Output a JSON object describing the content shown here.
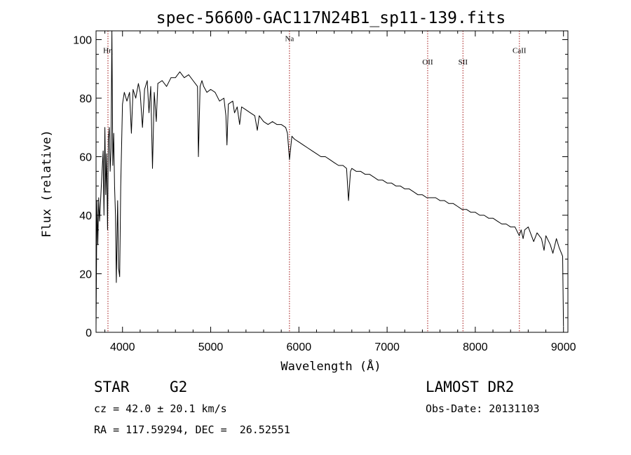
{
  "chart_data": {
    "type": "line",
    "title": "spec-56600-GAC117N24B1_sp11-139.fits",
    "xlabel": "Wavelength (Å)",
    "ylabel": "Flux (relative)",
    "xlim": [
      3700,
      9050
    ],
    "ylim": [
      0,
      103
    ],
    "xticks": [
      4000,
      5000,
      6000,
      7000,
      8000,
      9000
    ],
    "yticks": [
      0,
      20,
      40,
      60,
      80,
      100
    ],
    "grid": false,
    "color": "#000000",
    "line_marker_color": "#a01010",
    "spectral_lines": [
      {
        "name": "Hη",
        "wavelength": 3835,
        "label_y": 95
      },
      {
        "name": "Na",
        "wavelength": 5893,
        "label_y": 99
      },
      {
        "name": "OII",
        "wavelength": 7460,
        "label_y": 91
      },
      {
        "name": "SII",
        "wavelength": 7860,
        "label_y": 91
      },
      {
        "name": "CaII",
        "wavelength": 8500,
        "label_y": 95
      }
    ],
    "series": [
      {
        "points": [
          [
            3700,
            2
          ],
          [
            3710,
            45
          ],
          [
            3720,
            30
          ],
          [
            3730,
            46
          ],
          [
            3740,
            38
          ],
          [
            3760,
            50
          ],
          [
            3780,
            62
          ],
          [
            3790,
            40
          ],
          [
            3800,
            70
          ],
          [
            3810,
            47
          ],
          [
            3820,
            61
          ],
          [
            3830,
            35
          ],
          [
            3840,
            66
          ],
          [
            3850,
            70
          ],
          [
            3860,
            55
          ],
          [
            3870,
            63
          ],
          [
            3880,
            103
          ],
          [
            3890,
            57
          ],
          [
            3900,
            68
          ],
          [
            3910,
            50
          ],
          [
            3920,
            40
          ],
          [
            3930,
            17
          ],
          [
            3945,
            45
          ],
          [
            3955,
            22
          ],
          [
            3968,
            19
          ],
          [
            3980,
            50
          ],
          [
            4000,
            78
          ],
          [
            4020,
            82
          ],
          [
            4050,
            79
          ],
          [
            4080,
            82
          ],
          [
            4101,
            68
          ],
          [
            4120,
            83
          ],
          [
            4150,
            80
          ],
          [
            4180,
            85
          ],
          [
            4200,
            82
          ],
          [
            4226,
            70
          ],
          [
            4250,
            83
          ],
          [
            4280,
            86
          ],
          [
            4300,
            75
          ],
          [
            4320,
            84
          ],
          [
            4340,
            56
          ],
          [
            4360,
            82
          ],
          [
            4383,
            72
          ],
          [
            4400,
            85
          ],
          [
            4450,
            86
          ],
          [
            4500,
            84
          ],
          [
            4550,
            87
          ],
          [
            4600,
            87
          ],
          [
            4650,
            89
          ],
          [
            4700,
            87
          ],
          [
            4750,
            88
          ],
          [
            4800,
            86
          ],
          [
            4850,
            84
          ],
          [
            4861,
            60
          ],
          [
            4880,
            84
          ],
          [
            4900,
            86
          ],
          [
            4920,
            84
          ],
          [
            4957,
            82
          ],
          [
            5000,
            83
          ],
          [
            5050,
            82
          ],
          [
            5100,
            79
          ],
          [
            5150,
            80
          ],
          [
            5172,
            74
          ],
          [
            5184,
            64
          ],
          [
            5200,
            78
          ],
          [
            5250,
            79
          ],
          [
            5270,
            75
          ],
          [
            5300,
            77
          ],
          [
            5328,
            71
          ],
          [
            5350,
            77
          ],
          [
            5400,
            76
          ],
          [
            5450,
            75
          ],
          [
            5500,
            74
          ],
          [
            5528,
            69
          ],
          [
            5550,
            74
          ],
          [
            5600,
            72
          ],
          [
            5650,
            71
          ],
          [
            5700,
            72
          ],
          [
            5750,
            71
          ],
          [
            5800,
            71
          ],
          [
            5850,
            70
          ],
          [
            5870,
            68
          ],
          [
            5893,
            59
          ],
          [
            5920,
            67
          ],
          [
            5950,
            66
          ],
          [
            6000,
            65
          ],
          [
            6050,
            64
          ],
          [
            6100,
            63
          ],
          [
            6150,
            62
          ],
          [
            6200,
            61
          ],
          [
            6250,
            60
          ],
          [
            6300,
            60
          ],
          [
            6350,
            59
          ],
          [
            6400,
            58
          ],
          [
            6450,
            57
          ],
          [
            6500,
            57
          ],
          [
            6540,
            56
          ],
          [
            6563,
            45
          ],
          [
            6585,
            55
          ],
          [
            6600,
            56
          ],
          [
            6650,
            55
          ],
          [
            6700,
            55
          ],
          [
            6750,
            54
          ],
          [
            6800,
            54
          ],
          [
            6850,
            53
          ],
          [
            6900,
            52
          ],
          [
            6950,
            52
          ],
          [
            7000,
            51
          ],
          [
            7050,
            51
          ],
          [
            7100,
            50
          ],
          [
            7150,
            50
          ],
          [
            7200,
            49
          ],
          [
            7250,
            49
          ],
          [
            7300,
            48
          ],
          [
            7350,
            47
          ],
          [
            7400,
            47
          ],
          [
            7450,
            46
          ],
          [
            7500,
            46
          ],
          [
            7550,
            46
          ],
          [
            7600,
            45
          ],
          [
            7650,
            45
          ],
          [
            7700,
            44
          ],
          [
            7750,
            44
          ],
          [
            7800,
            43
          ],
          [
            7850,
            42
          ],
          [
            7900,
            42
          ],
          [
            7950,
            41
          ],
          [
            8000,
            41
          ],
          [
            8050,
            40
          ],
          [
            8100,
            40
          ],
          [
            8150,
            39
          ],
          [
            8200,
            39
          ],
          [
            8250,
            38
          ],
          [
            8300,
            37
          ],
          [
            8350,
            37
          ],
          [
            8400,
            36
          ],
          [
            8450,
            36
          ],
          [
            8498,
            33
          ],
          [
            8520,
            35
          ],
          [
            8542,
            32
          ],
          [
            8560,
            35
          ],
          [
            8600,
            36
          ],
          [
            8662,
            31
          ],
          [
            8700,
            34
          ],
          [
            8750,
            32
          ],
          [
            8780,
            28
          ],
          [
            8800,
            33
          ],
          [
            8850,
            30
          ],
          [
            8880,
            27
          ],
          [
            8920,
            32
          ],
          [
            8950,
            29
          ],
          [
            8990,
            26
          ],
          [
            9000,
            2
          ]
        ]
      }
    ]
  },
  "info": {
    "object_class": "STAR",
    "subclass": "G2",
    "survey": "LAMOST DR2",
    "redshift": "cz = 42.0 ± 20.1 km/s",
    "obs_date": "Obs-Date: 20131103",
    "coords": "RA = 117.59294, DEC =  26.52551"
  }
}
